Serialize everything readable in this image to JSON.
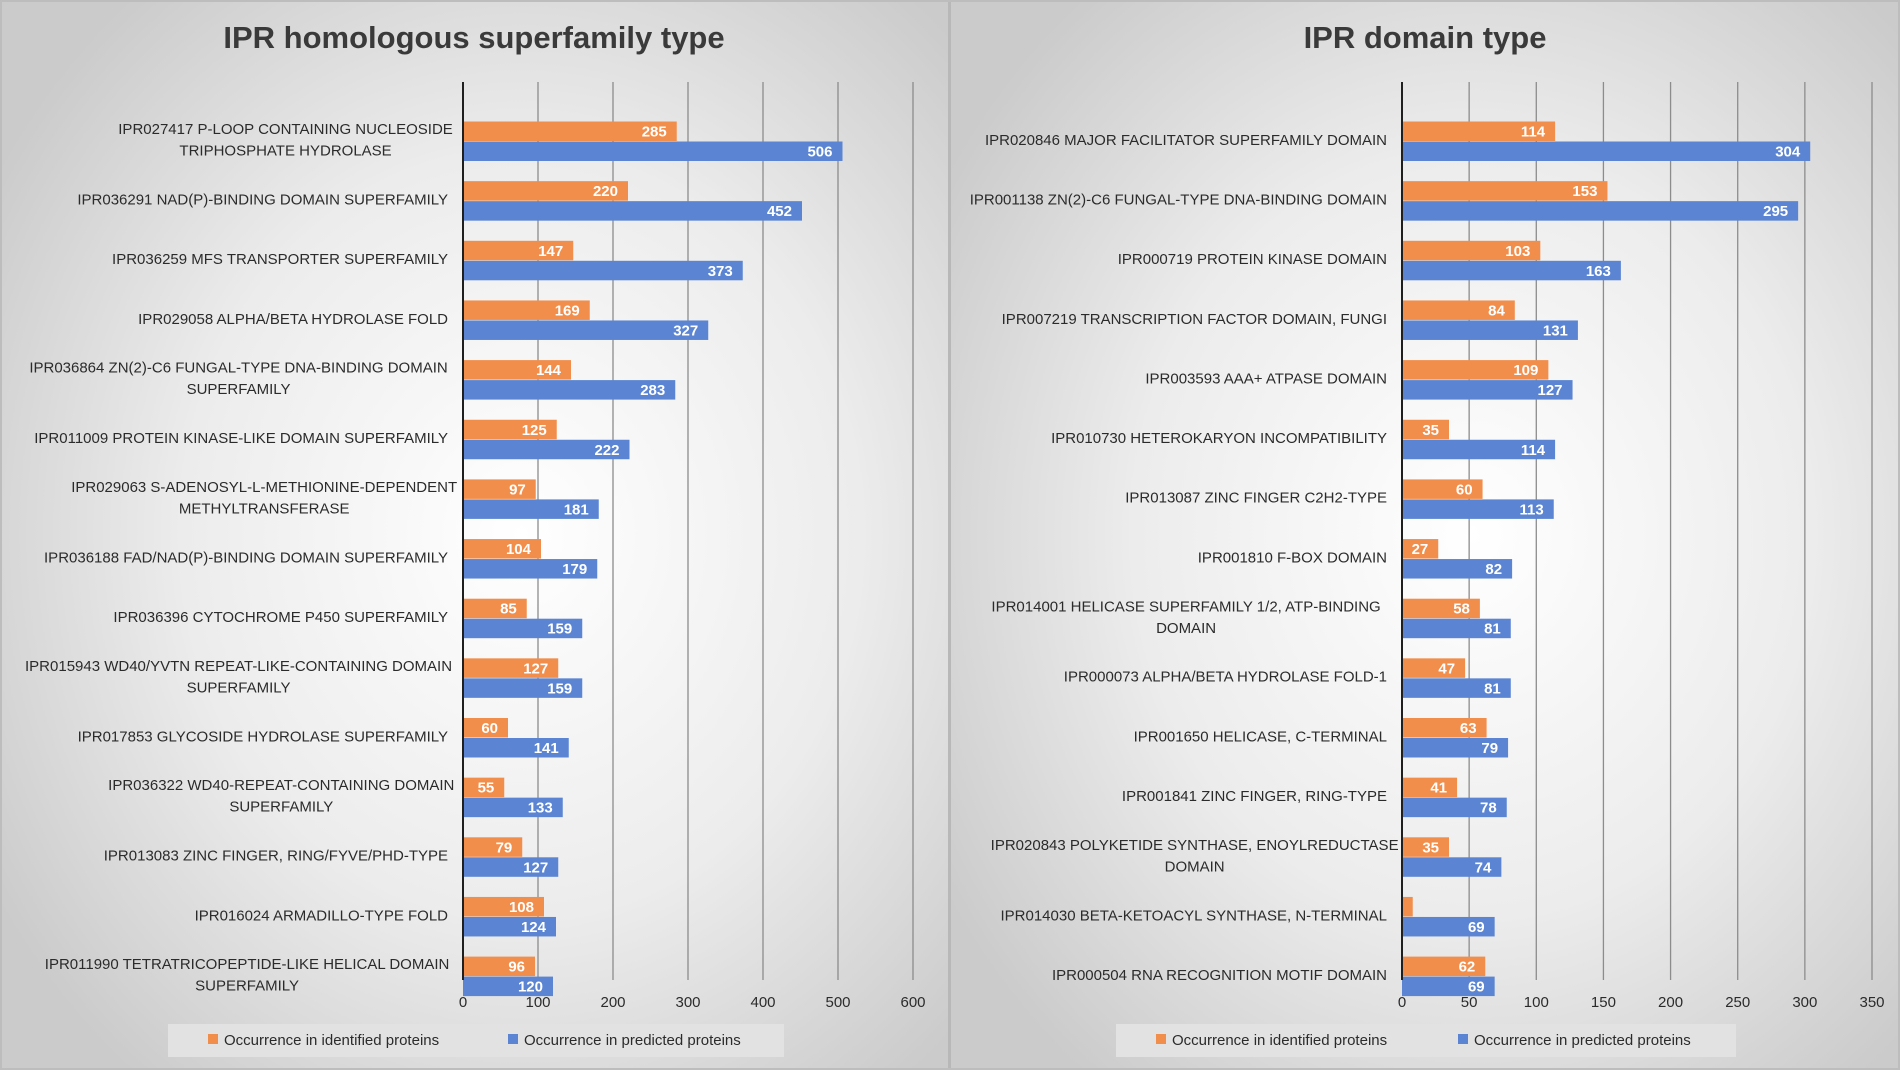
{
  "colors": {
    "identified": "#F28E4B",
    "predicted": "#5B85D3",
    "gridline": "#8c8c8c",
    "axis": "#1f1f1f",
    "text": "#2b2b2b",
    "legend_bg": "#e2e2e2"
  },
  "chart_data": [
    {
      "type": "bar",
      "orientation": "horizontal",
      "title": "IPR homologous superfamily type",
      "categories": [
        "IPR027417 P-LOOP CONTAINING NUCLEOSIDE TRIPHOSPHATE HYDROLASE",
        "IPR036291 NAD(P)-BINDING DOMAIN SUPERFAMILY",
        "IPR036259 MFS TRANSPORTER SUPERFAMILY",
        "IPR029058 ALPHA/BETA HYDROLASE FOLD",
        "IPR036864 ZN(2)-C6 FUNGAL-TYPE DNA-BINDING DOMAIN SUPERFAMILY",
        "IPR011009 PROTEIN KINASE-LIKE DOMAIN SUPERFAMILY",
        "IPR029063 S-ADENOSYL-L-METHIONINE-DEPENDENT METHYLTRANSFERASE",
        "IPR036188 FAD/NAD(P)-BINDING DOMAIN SUPERFAMILY",
        "IPR036396 CYTOCHROME P450 SUPERFAMILY",
        "IPR015943 WD40/YVTN REPEAT-LIKE-CONTAINING DOMAIN SUPERFAMILY",
        "IPR017853 GLYCOSIDE HYDROLASE SUPERFAMILY",
        "IPR036322 WD40-REPEAT-CONTAINING DOMAIN SUPERFAMILY",
        "IPR013083 ZINC FINGER, RING/FYVE/PHD-TYPE",
        "IPR016024 ARMADILLO-TYPE FOLD",
        "IPR011990 TETRATRICOPEPTIDE-LIKE HELICAL DOMAIN SUPERFAMILY"
      ],
      "category_lines": [
        [
          "IPR027417 P-LOOP CONTAINING NUCLEOSIDE",
          "TRIPHOSPHATE HYDROLASE"
        ],
        [
          "IPR036291 NAD(P)-BINDING DOMAIN SUPERFAMILY"
        ],
        [
          "IPR036259 MFS TRANSPORTER SUPERFAMILY"
        ],
        [
          "IPR029058 ALPHA/BETA HYDROLASE FOLD"
        ],
        [
          "IPR036864 ZN(2)-C6 FUNGAL-TYPE DNA-BINDING DOMAIN",
          "SUPERFAMILY"
        ],
        [
          "IPR011009 PROTEIN KINASE-LIKE DOMAIN SUPERFAMILY"
        ],
        [
          "IPR029063 S-ADENOSYL-L-METHIONINE-DEPENDENT",
          "METHYLTRANSFERASE"
        ],
        [
          "IPR036188 FAD/NAD(P)-BINDING DOMAIN SUPERFAMILY"
        ],
        [
          "IPR036396 CYTOCHROME P450 SUPERFAMILY"
        ],
        [
          "IPR015943 WD40/YVTN REPEAT-LIKE-CONTAINING DOMAIN",
          "SUPERFAMILY"
        ],
        [
          "IPR017853 GLYCOSIDE HYDROLASE SUPERFAMILY"
        ],
        [
          "IPR036322 WD40-REPEAT-CONTAINING DOMAIN",
          "SUPERFAMILY"
        ],
        [
          "IPR013083 ZINC FINGER, RING/FYVE/PHD-TYPE"
        ],
        [
          "IPR016024 ARMADILLO-TYPE FOLD"
        ],
        [
          "IPR011990 TETRATRICOPEPTIDE-LIKE HELICAL DOMAIN",
          "SUPERFAMILY"
        ]
      ],
      "series": [
        {
          "name": "Occurrence in identified proteins",
          "values": [
            285,
            220,
            147,
            169,
            144,
            125,
            97,
            104,
            85,
            127,
            60,
            55,
            79,
            108,
            96
          ]
        },
        {
          "name": "Occurrence in predicted proteins",
          "values": [
            506,
            452,
            373,
            327,
            283,
            222,
            181,
            179,
            159,
            159,
            141,
            133,
            127,
            124,
            120
          ]
        }
      ],
      "xlim": [
        0,
        600
      ],
      "xticks": [
        0,
        100,
        200,
        300,
        400,
        500,
        600
      ],
      "grid": true,
      "legend_position": "bottom"
    },
    {
      "type": "bar",
      "orientation": "horizontal",
      "title": "IPR domain type",
      "categories": [
        "IPR020846 MAJOR FACILITATOR SUPERFAMILY DOMAIN",
        "IPR001138 ZN(2)-C6 FUNGAL-TYPE DNA-BINDING DOMAIN",
        "IPR000719 PROTEIN KINASE DOMAIN",
        "IPR007219 TRANSCRIPTION FACTOR DOMAIN, FUNGI",
        "IPR003593 AAA+ ATPASE DOMAIN",
        "IPR010730 HETEROKARYON INCOMPATIBILITY",
        "IPR013087 ZINC FINGER C2H2-TYPE",
        "IPR001810 F-BOX DOMAIN",
        "IPR014001 HELICASE SUPERFAMILY 1/2, ATP-BINDING DOMAIN",
        "IPR000073 ALPHA/BETA HYDROLASE FOLD-1",
        "IPR001650 HELICASE, C-TERMINAL",
        "IPR001841 ZINC FINGER, RING-TYPE",
        "IPR020843 POLYKETIDE SYNTHASE, ENOYLREDUCTASE DOMAIN",
        "IPR014030 BETA-KETOACYL SYNTHASE, N-TERMINAL",
        "IPR000504 RNA RECOGNITION MOTIF DOMAIN"
      ],
      "category_lines": [
        [
          "IPR020846 MAJOR FACILITATOR SUPERFAMILY DOMAIN"
        ],
        [
          "IPR001138 ZN(2)-C6 FUNGAL-TYPE DNA-BINDING DOMAIN"
        ],
        [
          "IPR000719 PROTEIN KINASE DOMAIN"
        ],
        [
          "IPR007219 TRANSCRIPTION FACTOR DOMAIN, FUNGI"
        ],
        [
          "IPR003593 AAA+ ATPASE DOMAIN"
        ],
        [
          "IPR010730 HETEROKARYON INCOMPATIBILITY"
        ],
        [
          "IPR013087 ZINC FINGER C2H2-TYPE"
        ],
        [
          "IPR001810 F-BOX DOMAIN"
        ],
        [
          "IPR014001 HELICASE SUPERFAMILY 1/2, ATP-BINDING",
          "DOMAIN"
        ],
        [
          "IPR000073 ALPHA/BETA HYDROLASE FOLD-1"
        ],
        [
          "IPR001650 HELICASE, C-TERMINAL"
        ],
        [
          "IPR001841 ZINC FINGER, RING-TYPE"
        ],
        [
          "IPR020843 POLYKETIDE SYNTHASE, ENOYLREDUCTASE",
          "DOMAIN"
        ],
        [
          "IPR014030 BETA-KETOACYL SYNTHASE, N-TERMINAL"
        ],
        [
          "IPR000504 RNA RECOGNITION MOTIF DOMAIN"
        ]
      ],
      "series": [
        {
          "name": "Occurrence in identified proteins",
          "values": [
            114,
            153,
            103,
            84,
            109,
            35,
            60,
            27,
            58,
            47,
            63,
            41,
            35,
            8,
            62
          ],
          "value_labels": [
            "114",
            "153",
            "103",
            "84",
            "109",
            "35",
            "60",
            "27",
            "58",
            "47",
            "63",
            "41",
            "35",
            "",
            "62"
          ]
        },
        {
          "name": "Occurrence in predicted proteins",
          "values": [
            304,
            295,
            163,
            131,
            127,
            114,
            113,
            82,
            81,
            81,
            79,
            78,
            74,
            69,
            69
          ]
        }
      ],
      "xlim": [
        0,
        350
      ],
      "xticks": [
        0,
        50,
        100,
        150,
        200,
        250,
        300,
        350
      ],
      "grid": true,
      "legend_position": "bottom"
    }
  ]
}
